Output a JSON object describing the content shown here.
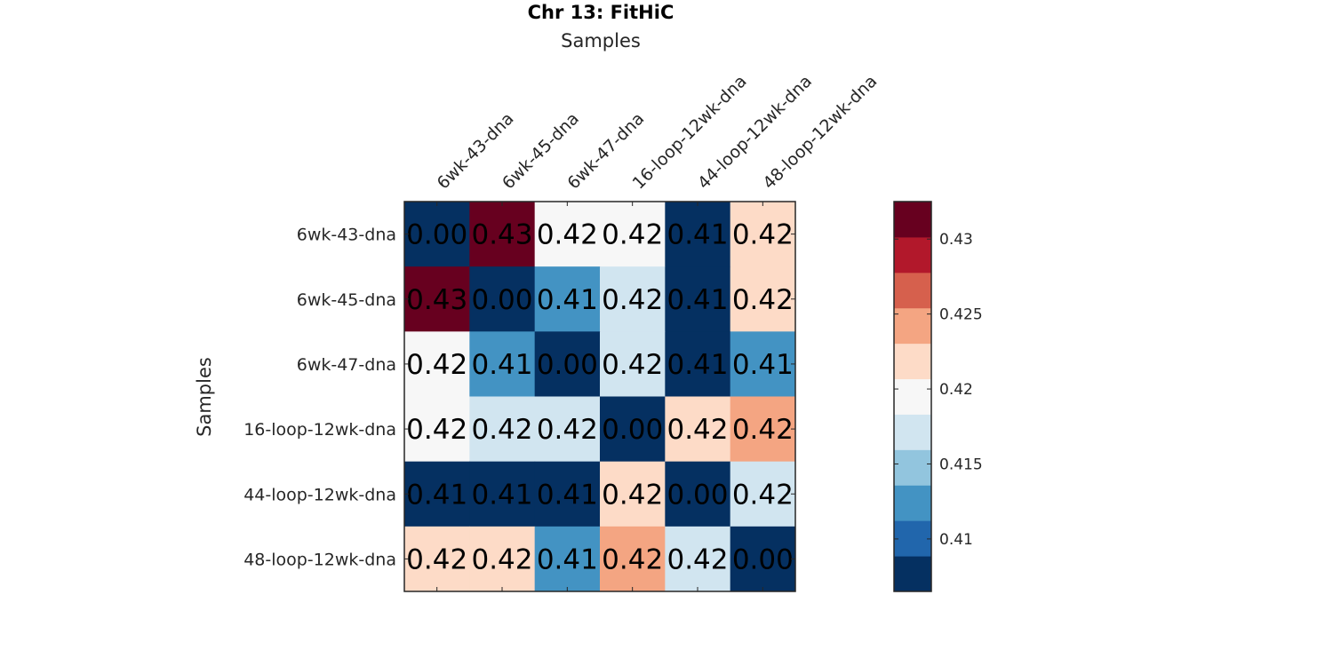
{
  "chart_data": {
    "type": "heatmap",
    "title": "Chr 13: FitHiC",
    "xlabel": "Samples",
    "ylabel": "Samples",
    "rows": [
      "6wk-43-dna",
      "6wk-45-dna",
      "6wk-47-dna",
      "16-loop-12wk-dna",
      "44-loop-12wk-dna",
      "48-loop-12wk-dna"
    ],
    "cols": [
      "6wk-43-dna",
      "6wk-45-dna",
      "6wk-47-dna",
      "16-loop-12wk-dna",
      "44-loop-12wk-dna",
      "48-loop-12wk-dna"
    ],
    "values": [
      [
        0.0,
        0.432,
        0.42,
        0.42,
        0.407,
        0.422
      ],
      [
        0.432,
        0.0,
        0.413,
        0.418,
        0.407,
        0.422
      ],
      [
        0.42,
        0.413,
        0.0,
        0.416,
        0.407,
        0.413
      ],
      [
        0.42,
        0.418,
        0.416,
        0.0,
        0.422,
        0.424
      ],
      [
        0.407,
        0.407,
        0.407,
        0.422,
        0.0,
        0.416
      ],
      [
        0.422,
        0.422,
        0.413,
        0.424,
        0.416,
        0.0
      ]
    ],
    "cell_labels": [
      [
        "0.00",
        "0.43",
        "0.42",
        "0.42",
        "0.41",
        "0.42"
      ],
      [
        "0.43",
        "0.00",
        "0.41",
        "0.42",
        "0.41",
        "0.42"
      ],
      [
        "0.42",
        "0.41",
        "0.00",
        "0.42",
        "0.41",
        "0.41"
      ],
      [
        "0.42",
        "0.42",
        "0.42",
        "0.00",
        "0.42",
        "0.42"
      ],
      [
        "0.41",
        "0.41",
        "0.41",
        "0.42",
        "0.00",
        "0.42"
      ],
      [
        "0.42",
        "0.42",
        "0.41",
        "0.42",
        "0.42",
        "0.00"
      ]
    ],
    "colorbar": {
      "range": [
        0.4065,
        0.4325
      ],
      "ticks": [
        "0.41",
        "0.415",
        "0.42",
        "0.425",
        "0.43"
      ],
      "tick_values": [
        0.41,
        0.415,
        0.42,
        0.425,
        0.43
      ],
      "colors": [
        "#053061",
        "#2166ac",
        "#4393c3",
        "#92c5de",
        "#d1e5f0",
        "#f7f7f7",
        "#fddbc7",
        "#f4a582",
        "#d6604d",
        "#b2182b",
        "#67001f"
      ]
    },
    "grid": false,
    "legend": "colorbar-right"
  }
}
